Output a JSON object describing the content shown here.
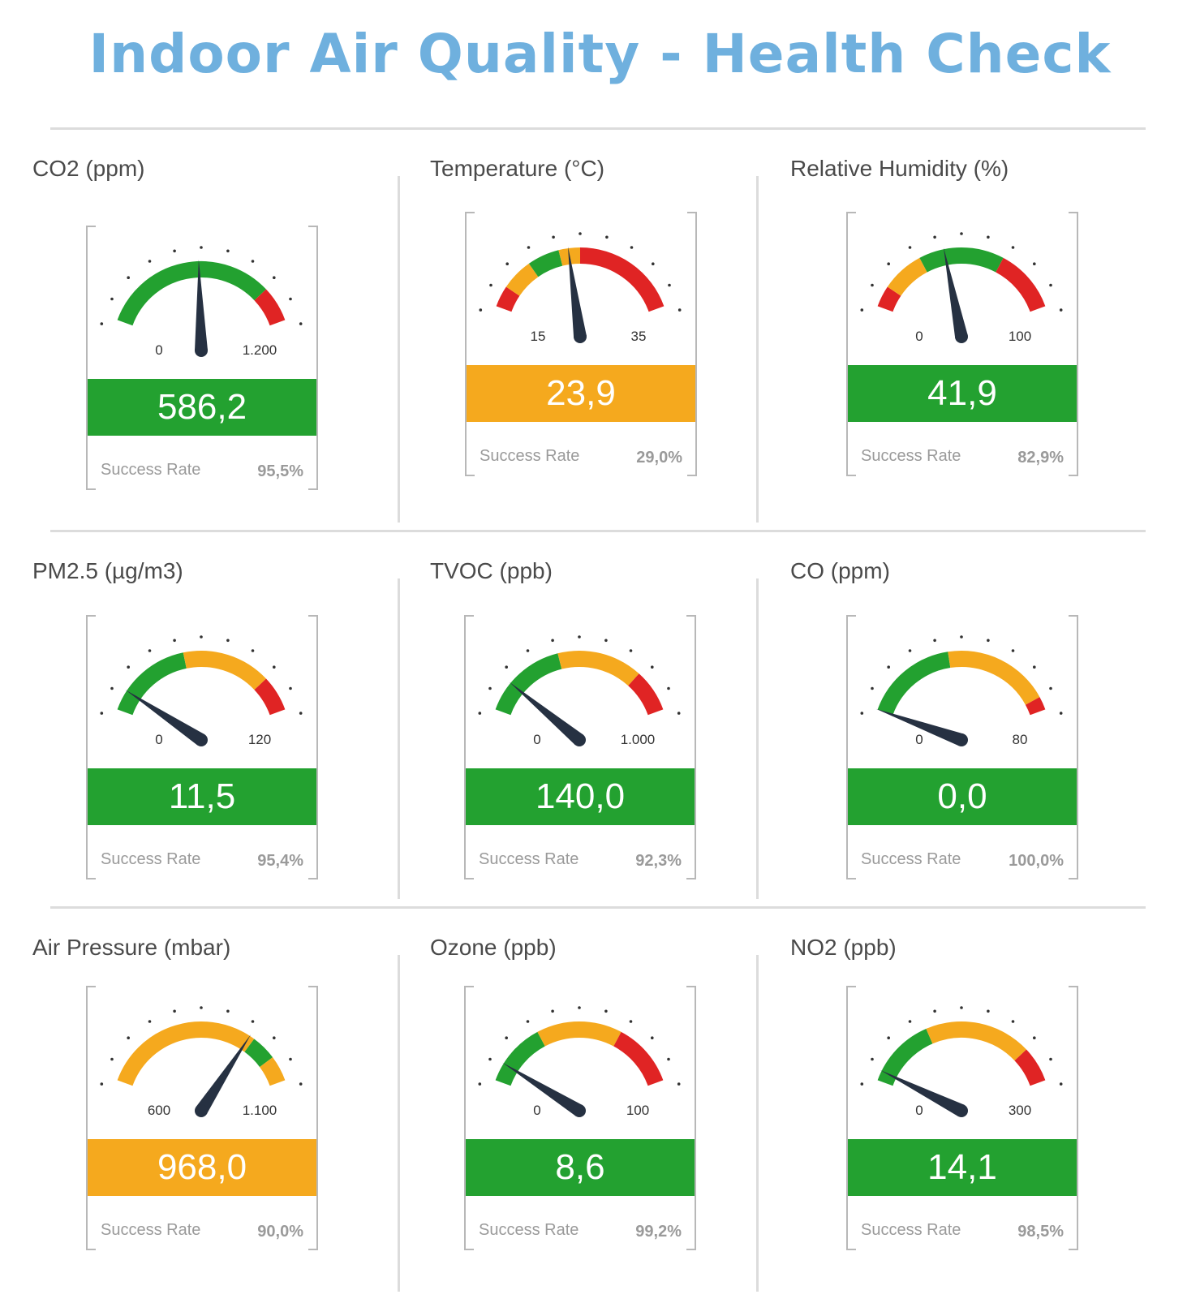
{
  "title": "Indoor Air Quality - Health Check",
  "colors": {
    "green": "#23a130",
    "orange": "#f5a91e",
    "red": "#e02424",
    "needle": "#263142",
    "title": "#6fb0de"
  },
  "success_rate_label": "Success Rate",
  "gauges": [
    {
      "label": "CO2 (ppm)",
      "min_label": "0",
      "max_label": "1.200",
      "value": "586,2",
      "value_num": 586.2,
      "min": 0,
      "max": 1200,
      "status": "green",
      "success_rate": "95,5%",
      "bands": [
        {
          "from": 0,
          "to": 1000,
          "color": "green"
        },
        {
          "from": 1000,
          "to": 1200,
          "color": "red"
        }
      ]
    },
    {
      "label": "Temperature (°C)",
      "min_label": "15",
      "max_label": "35",
      "value": "23,9",
      "value_num": 23.9,
      "min": 15,
      "max": 35,
      "status": "orange",
      "success_rate": "29,0%",
      "bands": [
        {
          "from": 15,
          "to": 17,
          "color": "red"
        },
        {
          "from": 17,
          "to": 20,
          "color": "orange"
        },
        {
          "from": 20,
          "to": 23,
          "color": "green"
        },
        {
          "from": 23,
          "to": 25,
          "color": "orange"
        },
        {
          "from": 25,
          "to": 35,
          "color": "red"
        }
      ]
    },
    {
      "label": "Relative Humidity (%)",
      "min_label": "0",
      "max_label": "100",
      "value": "41,9",
      "value_num": 41.9,
      "min": 0,
      "max": 100,
      "status": "green",
      "success_rate": "82,9%",
      "bands": [
        {
          "from": 0,
          "to": 10,
          "color": "red"
        },
        {
          "from": 10,
          "to": 30,
          "color": "orange"
        },
        {
          "from": 30,
          "to": 70,
          "color": "green"
        },
        {
          "from": 70,
          "to": 100,
          "color": "red"
        }
      ]
    },
    {
      "label": "PM2.5 (µg/m3)",
      "min_label": "0",
      "max_label": "120",
      "value": "11,5",
      "value_num": 11.5,
      "min": 0,
      "max": 120,
      "status": "green",
      "success_rate": "95,4%",
      "bands": [
        {
          "from": 0,
          "to": 50,
          "color": "green"
        },
        {
          "from": 50,
          "to": 100,
          "color": "orange"
        },
        {
          "from": 100,
          "to": 120,
          "color": "red"
        }
      ]
    },
    {
      "label": "TVOC (ppb)",
      "min_label": "0",
      "max_label": "1.000",
      "value": "140,0",
      "value_num": 140.0,
      "min": 0,
      "max": 1000,
      "status": "green",
      "success_rate": "92,3%",
      "bands": [
        {
          "from": 0,
          "to": 400,
          "color": "green"
        },
        {
          "from": 400,
          "to": 800,
          "color": "orange"
        },
        {
          "from": 800,
          "to": 1000,
          "color": "red"
        }
      ]
    },
    {
      "label": "CO (ppm)",
      "min_label": "0",
      "max_label": "80",
      "value": "0,0",
      "value_num": 0.0,
      "min": 0,
      "max": 80,
      "status": "green",
      "success_rate": "100,0%",
      "bands": [
        {
          "from": 0,
          "to": 35,
          "color": "green"
        },
        {
          "from": 35,
          "to": 75,
          "color": "orange"
        },
        {
          "from": 75,
          "to": 80,
          "color": "red"
        }
      ]
    },
    {
      "label": "Air Pressure (mbar)",
      "min_label": "600",
      "max_label": "1.100",
      "value": "968,0",
      "value_num": 968.0,
      "min": 600,
      "max": 1100,
      "status": "orange",
      "success_rate": "90,0%",
      "bands": [
        {
          "from": 600,
          "to": 980,
          "color": "orange"
        },
        {
          "from": 980,
          "to": 1040,
          "color": "green"
        },
        {
          "from": 1040,
          "to": 1100,
          "color": "orange"
        }
      ]
    },
    {
      "label": "Ozone (ppb)",
      "min_label": "0",
      "max_label": "100",
      "value": "8,6",
      "value_num": 8.6,
      "min": 0,
      "max": 100,
      "status": "green",
      "success_rate": "99,2%",
      "bands": [
        {
          "from": 0,
          "to": 30,
          "color": "green"
        },
        {
          "from": 30,
          "to": 70,
          "color": "orange"
        },
        {
          "from": 70,
          "to": 100,
          "color": "red"
        }
      ]
    },
    {
      "label": "NO2 (ppb)",
      "min_label": "0",
      "max_label": "300",
      "value": "14,1",
      "value_num": 14.1,
      "min": 0,
      "max": 300,
      "status": "green",
      "success_rate": "98,5%",
      "bands": [
        {
          "from": 0,
          "to": 100,
          "color": "green"
        },
        {
          "from": 100,
          "to": 250,
          "color": "orange"
        },
        {
          "from": 250,
          "to": 300,
          "color": "red"
        }
      ]
    }
  ]
}
